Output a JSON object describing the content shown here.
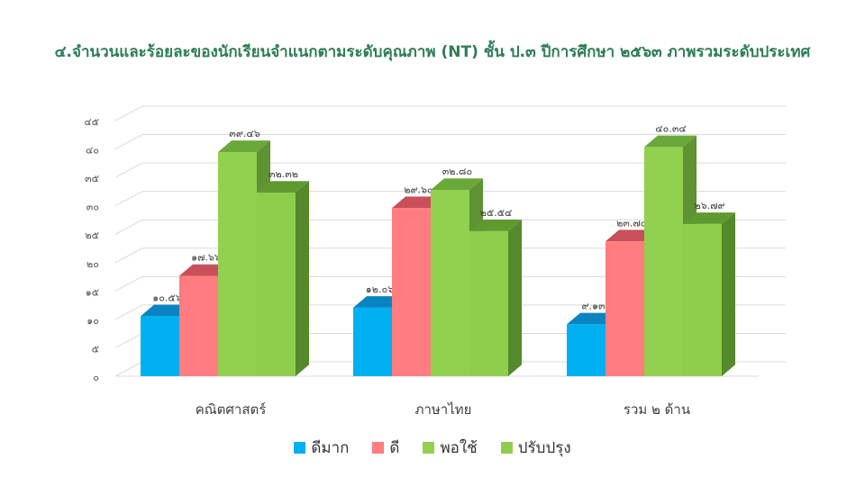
{
  "chart_data": {
    "type": "bar",
    "title": "๔.จำนวนและร้อยละของนักเรียนจำแนกตามระดับคุณภาพ (NT) ชั้น ป.๓ ปีการศึกษา ๒๕๖๓ ภาพรวมระดับประเทศ",
    "categories": [
      "คณิตศาสตร์",
      "ภาษาไทย",
      "รวม ๒ ด้าน"
    ],
    "series": [
      {
        "name": "ดีมาก",
        "color": "#00b0f0",
        "top_color": "#0a84c0",
        "side_color": "#0078b0",
        "values": [
          10.56,
          12.06,
          9.13
        ],
        "labels": [
          "๑๐.๕๖",
          "๑๒.๐๖",
          "๙.๑๓"
        ]
      },
      {
        "name": "ดี",
        "color": "#ff7c80",
        "top_color": "#c9505a",
        "side_color": "#c0505a",
        "values": [
          17.66,
          29.6,
          23.74
        ],
        "labels": [
          "๑๗.๖๖",
          "๒๙.๖๐",
          "๒๓.๗๔"
        ]
      },
      {
        "name": "พอใช้",
        "color": "#92d050",
        "top_color": "#6aa83a",
        "side_color": "#5e9232",
        "values": [
          39.46,
          32.8,
          40.34
        ],
        "labels": [
          "๓๙.๔๖",
          "๓๒.๘๐",
          "๔๐.๓๔"
        ]
      },
      {
        "name": "ปรับปรุง",
        "color": "#8fce4c",
        "top_color": "#5e9a30",
        "side_color": "#548a2c",
        "values": [
          32.32,
          25.54,
          26.79
        ],
        "labels": [
          "๓๒.๓๒",
          "๒๕.๕๔",
          "๒๖.๗๙"
        ]
      }
    ],
    "ylim": [
      0,
      45
    ],
    "yticks": [
      0,
      5,
      10,
      15,
      20,
      25,
      30,
      35,
      40,
      45
    ],
    "ytick_labels": [
      "๐",
      "๕",
      "๑๐",
      "๑๕",
      "๒๐",
      "๒๕",
      "๓๐",
      "๓๕",
      "๔๐",
      "๔๕"
    ],
    "grid": true,
    "legend_position": "bottom",
    "xlabel": "",
    "ylabel": ""
  }
}
